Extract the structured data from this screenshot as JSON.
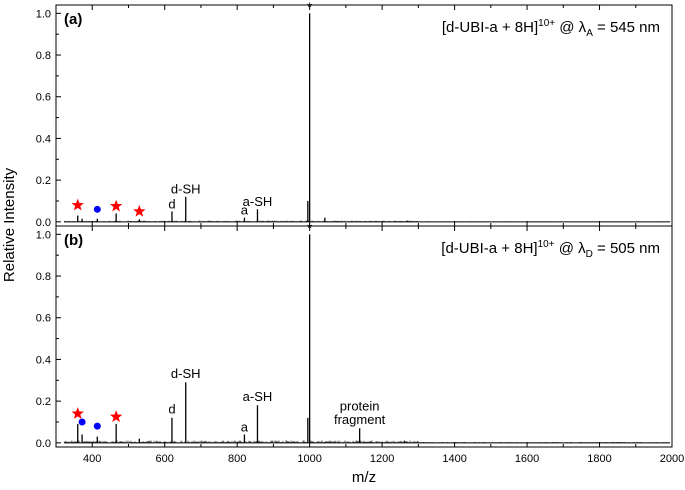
{
  "chart_data": {
    "type": "line",
    "xlabel": "m/z",
    "ylabel": "Relative Intensity",
    "xlim": [
      300,
      2000
    ],
    "ylim": [
      -0.02,
      1.04
    ],
    "x_ticks": [
      "400",
      "600",
      "800",
      "1000",
      "1200",
      "1400",
      "1600",
      "1800",
      "2000"
    ],
    "y_ticks": [
      "0.0",
      "0.2",
      "0.4",
      "0.6",
      "0.8",
      "1.0"
    ],
    "legend": "none",
    "grid": false,
    "panels": [
      {
        "label": "(a)",
        "title": {
          "prefix": "[d-UBI-a + 8H]",
          "charge": "10+",
          "mid": " @ λ",
          "sub": "A",
          "suffix": " = 545 nm"
        },
        "peaks": [
          {
            "x": 360,
            "y": 0.03
          },
          {
            "x": 372,
            "y": 0.015
          },
          {
            "x": 414,
            "y": 0.015
          },
          {
            "x": 466,
            "y": 0.04
          },
          {
            "x": 530,
            "y": 0.012
          },
          {
            "x": 620,
            "y": 0.05
          },
          {
            "x": 658,
            "y": 0.12
          },
          {
            "x": 820,
            "y": 0.02
          },
          {
            "x": 856,
            "y": 0.06
          },
          {
            "x": 995,
            "y": 0.1
          },
          {
            "x": 1000,
            "y": 1.0
          },
          {
            "x": 1042,
            "y": 0.02
          },
          {
            "x": 1270,
            "y": 0.005
          }
        ],
        "annotations": [
          {
            "text": "*",
            "x": 1000,
            "y": 1.01
          },
          {
            "text": "d",
            "x": 620,
            "y": 0.065
          },
          {
            "text": "d-SH",
            "x": 658,
            "y": 0.135
          },
          {
            "text": "a",
            "x": 820,
            "y": 0.035
          },
          {
            "text": "a-SH",
            "x": 856,
            "y": 0.075
          }
        ],
        "red_stars": [
          {
            "x": 360,
            "y": 0.08
          },
          {
            "x": 466,
            "y": 0.075
          },
          {
            "x": 530,
            "y": 0.05
          }
        ],
        "blue_dots": [
          {
            "x": 414,
            "y": 0.06
          }
        ]
      },
      {
        "label": "(b)",
        "title": {
          "prefix": "[d-UBI-a + 8H]",
          "charge": "10+",
          "mid": " @ λ",
          "sub": "D",
          "suffix": " = 505 nm"
        },
        "peaks": [
          {
            "x": 360,
            "y": 0.09
          },
          {
            "x": 372,
            "y": 0.04
          },
          {
            "x": 414,
            "y": 0.03
          },
          {
            "x": 466,
            "y": 0.09
          },
          {
            "x": 530,
            "y": 0.02
          },
          {
            "x": 620,
            "y": 0.12
          },
          {
            "x": 658,
            "y": 0.29
          },
          {
            "x": 820,
            "y": 0.04
          },
          {
            "x": 856,
            "y": 0.18
          },
          {
            "x": 995,
            "y": 0.12
          },
          {
            "x": 1000,
            "y": 1.0
          },
          {
            "x": 1138,
            "y": 0.07
          },
          {
            "x": 1262,
            "y": 0.01
          }
        ],
        "annotations": [
          {
            "text": "*",
            "x": 1000,
            "y": 1.01
          },
          {
            "text": "d",
            "x": 620,
            "y": 0.14
          },
          {
            "text": "d-SH",
            "x": 658,
            "y": 0.31
          },
          {
            "text": "a",
            "x": 820,
            "y": 0.055
          },
          {
            "text": "a-SH",
            "x": 856,
            "y": 0.2
          },
          {
            "text": "protein",
            "x": 1138,
            "y": 0.155
          },
          {
            "text": "fragment",
            "x": 1138,
            "y": 0.09
          }
        ],
        "red_stars": [
          {
            "x": 360,
            "y": 0.14
          },
          {
            "x": 466,
            "y": 0.125
          }
        ],
        "blue_dots": [
          {
            "x": 372,
            "y": 0.1
          },
          {
            "x": 414,
            "y": 0.08
          }
        ]
      }
    ],
    "colors": {
      "line": "#000000",
      "star": "#ff0000",
      "dot": "#0000ff"
    }
  }
}
